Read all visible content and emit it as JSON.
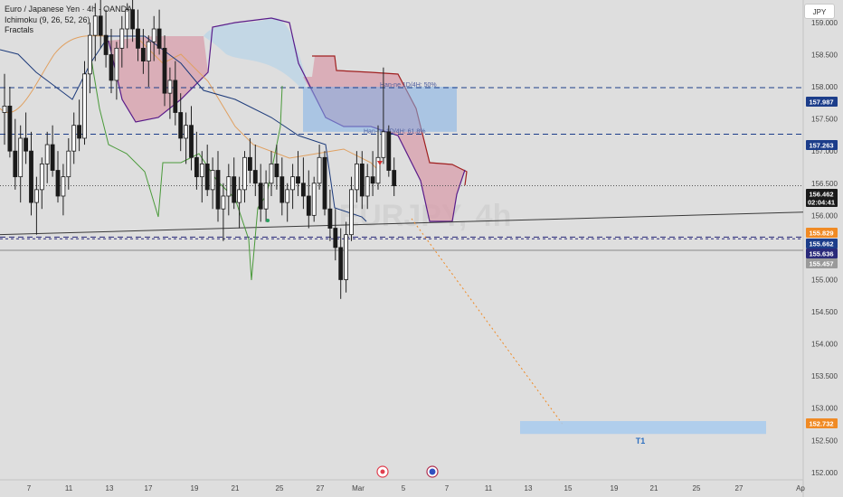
{
  "header": {
    "symbol_line": "Euro / Japanese Yen · 4h · OANDA",
    "ichimoku": "Ichimoku (9, 26, 52, 26)",
    "fractals": "Fractals"
  },
  "currency_button": "JPY",
  "chart_data": {
    "type": "line",
    "title": "Euro / Japanese Yen · 4h · OANDA",
    "ylim": [
      151.9,
      159.35
    ],
    "y_ticks": [
      152.0,
      152.5,
      153.0,
      153.5,
      154.0,
      154.5,
      155.0,
      155.5,
      156.0,
      156.5,
      157.0,
      157.5,
      158.0,
      158.5,
      159.0
    ],
    "x_ticks": [
      "7",
      "11",
      "13",
      "17",
      "19",
      "21",
      "25",
      "27",
      "Mar",
      "5",
      "7",
      "11",
      "13",
      "15",
      "19",
      "21",
      "25",
      "27",
      "Ap"
    ],
    "grid": false,
    "price_labels": [
      {
        "value": "157.987",
        "color": "#1c3d8a"
      },
      {
        "value": "157.263",
        "color": "#1c3d8a"
      },
      {
        "value": "156.462",
        "color": "#1a1a1a"
      },
      {
        "value": "02:04:41",
        "color": "#1a1a1a"
      },
      {
        "value": "155.829",
        "color": "#f08a24"
      },
      {
        "value": "155.662",
        "color": "#1c3d8a"
      },
      {
        "value": "155.636",
        "color": "#2a2a7a"
      },
      {
        "value": "155.457",
        "color": "#9a9a9a"
      },
      {
        "value": "152.732",
        "color": "#f08a24"
      }
    ],
    "horizontal_levels": [
      {
        "price": 157.987,
        "style": "dashed",
        "color": "#1c3d8a"
      },
      {
        "price": 157.263,
        "style": "dashed",
        "color": "#1c3d8a"
      },
      {
        "price": 156.462,
        "style": "dotted",
        "color": "#555555"
      },
      {
        "price": 155.662,
        "style": "dashed",
        "color": "#2a2a7a"
      },
      {
        "price": 155.457,
        "style": "solid",
        "color": "#888888"
      }
    ],
    "fib_labels": [
      "Han-ne 1D/4H: 50%",
      "Han-ne 1D/4H: 61.8%"
    ],
    "supply_zone": {
      "top": 158.0,
      "bottom": 157.3
    },
    "target_zone": {
      "top": 152.8,
      "bottom": 152.6,
      "label": "T1",
      "value": 152.732
    },
    "trendline": {
      "from": 155.7,
      "to": 156.05
    },
    "projection": {
      "from": 155.95,
      "to": 152.75
    },
    "watermark": "EURJPY, 4h",
    "ohlc": [
      [
        157.6,
        158.2,
        157.1,
        157.7
      ],
      [
        157.7,
        158.0,
        156.9,
        157.0
      ],
      [
        157.0,
        157.5,
        156.4,
        156.6
      ],
      [
        156.6,
        157.4,
        156.2,
        157.2
      ],
      [
        157.2,
        157.6,
        156.8,
        157.0
      ],
      [
        157.0,
        157.3,
        156.0,
        156.2
      ],
      [
        156.2,
        156.6,
        155.7,
        156.4
      ],
      [
        156.4,
        156.9,
        156.1,
        156.8
      ],
      [
        156.8,
        157.3,
        156.5,
        157.1
      ],
      [
        157.1,
        157.4,
        156.6,
        156.7
      ],
      [
        156.7,
        157.0,
        156.2,
        156.3
      ],
      [
        156.3,
        156.8,
        156.0,
        156.6
      ],
      [
        156.6,
        157.2,
        156.4,
        157.0
      ],
      [
        157.0,
        157.6,
        156.8,
        157.4
      ],
      [
        157.4,
        157.8,
        157.0,
        157.2
      ],
      [
        157.2,
        158.4,
        157.1,
        158.2
      ],
      [
        158.2,
        159.0,
        157.9,
        158.8
      ],
      [
        158.8,
        159.3,
        158.4,
        159.1
      ],
      [
        159.1,
        159.35,
        158.6,
        158.8
      ],
      [
        158.8,
        159.2,
        158.3,
        158.5
      ],
      [
        158.5,
        158.9,
        157.9,
        158.1
      ],
      [
        158.1,
        158.7,
        157.8,
        158.6
      ],
      [
        158.6,
        159.1,
        158.3,
        158.9
      ],
      [
        158.9,
        159.3,
        158.6,
        159.2
      ],
      [
        159.2,
        159.35,
        158.7,
        158.9
      ],
      [
        158.9,
        159.2,
        158.4,
        158.6
      ],
      [
        158.6,
        158.9,
        158.2,
        158.4
      ],
      [
        158.4,
        158.8,
        158.0,
        158.7
      ],
      [
        158.7,
        159.1,
        158.4,
        158.9
      ],
      [
        158.9,
        159.2,
        158.5,
        158.6
      ],
      [
        158.6,
        158.8,
        157.7,
        157.9
      ],
      [
        157.9,
        158.3,
        157.5,
        158.1
      ],
      [
        158.1,
        158.4,
        157.4,
        157.6
      ],
      [
        157.6,
        157.9,
        157.0,
        157.2
      ],
      [
        157.2,
        157.6,
        156.8,
        157.4
      ],
      [
        157.4,
        157.7,
        156.7,
        156.9
      ],
      [
        156.9,
        157.3,
        156.4,
        156.6
      ],
      [
        156.6,
        157.0,
        156.2,
        156.8
      ],
      [
        156.8,
        157.1,
        156.3,
        156.4
      ],
      [
        156.4,
        156.9,
        156.1,
        156.7
      ],
      [
        156.7,
        157.0,
        155.9,
        156.1
      ],
      [
        156.1,
        156.5,
        155.6,
        156.3
      ],
      [
        156.3,
        156.8,
        156.0,
        156.6
      ],
      [
        156.6,
        156.9,
        156.1,
        156.2
      ],
      [
        156.2,
        156.6,
        155.8,
        156.4
      ],
      [
        156.4,
        157.0,
        156.2,
        156.9
      ],
      [
        156.9,
        157.2,
        156.5,
        156.7
      ],
      [
        156.7,
        157.1,
        156.3,
        156.5
      ],
      [
        156.5,
        156.8,
        155.9,
        156.1
      ],
      [
        156.1,
        156.7,
        155.9,
        156.5
      ],
      [
        156.5,
        157.0,
        156.3,
        156.8
      ],
      [
        156.8,
        157.1,
        156.4,
        156.6
      ],
      [
        156.6,
        156.9,
        156.0,
        156.2
      ],
      [
        156.2,
        156.5,
        155.9,
        156.4
      ],
      [
        156.4,
        156.8,
        156.1,
        156.6
      ],
      [
        156.6,
        157.0,
        156.3,
        156.5
      ],
      [
        156.5,
        156.9,
        156.1,
        156.3
      ],
      [
        156.3,
        156.7,
        155.8,
        156.0
      ],
      [
        156.0,
        156.6,
        155.9,
        156.5
      ],
      [
        156.5,
        157.1,
        156.4,
        156.9
      ],
      [
        156.9,
        157.0,
        156.0,
        156.1
      ],
      [
        156.1,
        156.4,
        155.6,
        155.8
      ],
      [
        155.8,
        156.1,
        155.3,
        155.5
      ],
      [
        155.5,
        155.8,
        154.7,
        155.0
      ],
      [
        155.0,
        155.9,
        154.8,
        155.7
      ],
      [
        155.7,
        156.6,
        155.6,
        156.4
      ],
      [
        156.4,
        157.0,
        156.2,
        156.8
      ],
      [
        156.8,
        157.0,
        156.1,
        156.3
      ],
      [
        156.3,
        156.8,
        156.1,
        156.6
      ],
      [
        156.6,
        157.0,
        156.3,
        156.5
      ],
      [
        156.5,
        157.4,
        156.4,
        156.9
      ],
      [
        156.9,
        158.3,
        156.8,
        157.3
      ],
      [
        157.3,
        157.4,
        156.6,
        156.7
      ],
      [
        156.7,
        156.9,
        156.3,
        156.46
      ]
    ]
  }
}
